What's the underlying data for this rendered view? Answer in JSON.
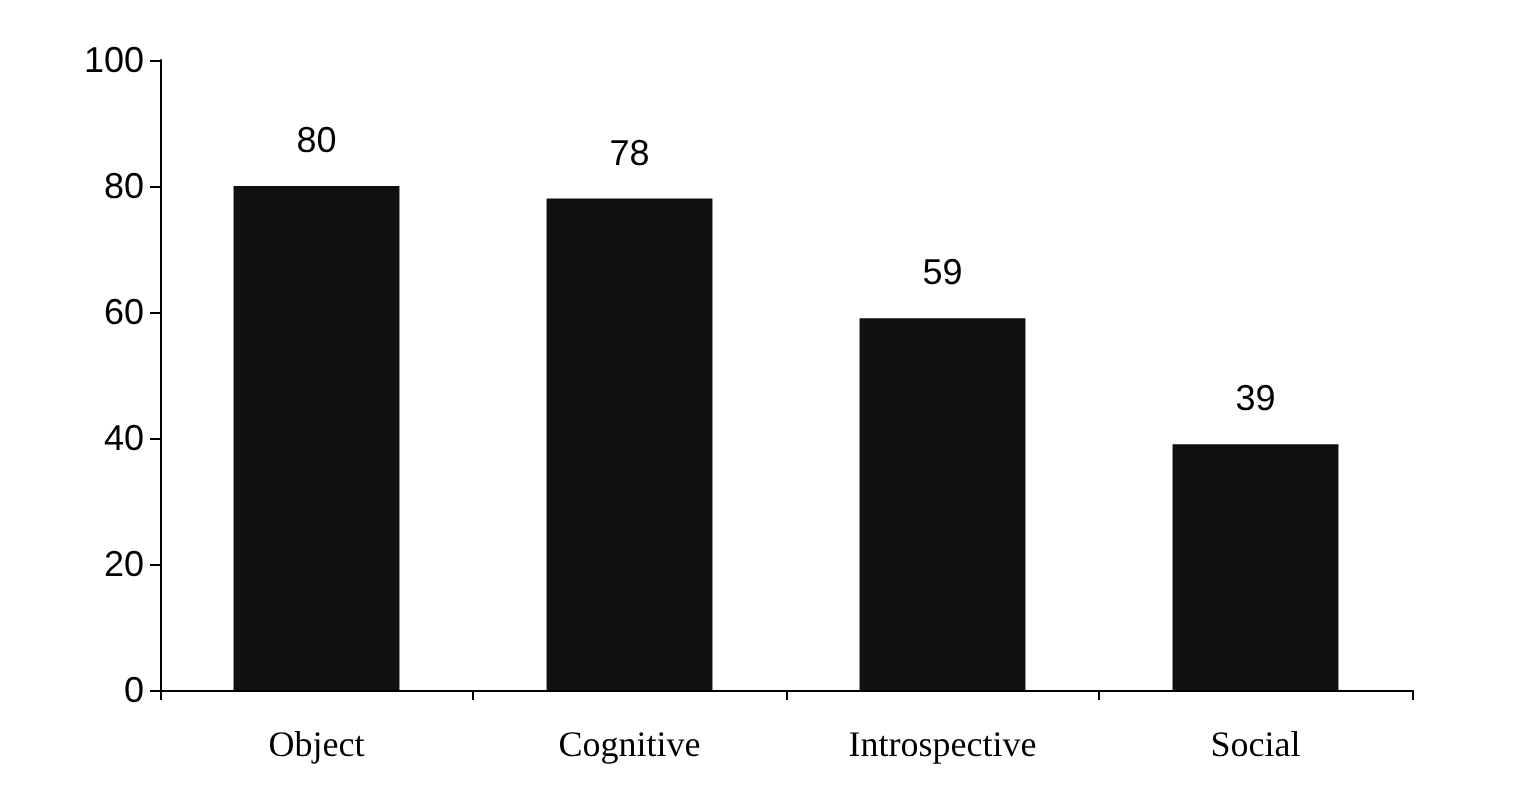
{
  "chart_data": {
    "type": "bar",
    "categories": [
      "Object",
      "Cognitive",
      "Introspective",
      "Social"
    ],
    "values": [
      80,
      78,
      59,
      39
    ],
    "color": "#111111",
    "ylim": [
      0,
      100
    ],
    "yticks": [
      0,
      20,
      40,
      60,
      80,
      100
    ],
    "data_labels": true,
    "grid": false
  }
}
